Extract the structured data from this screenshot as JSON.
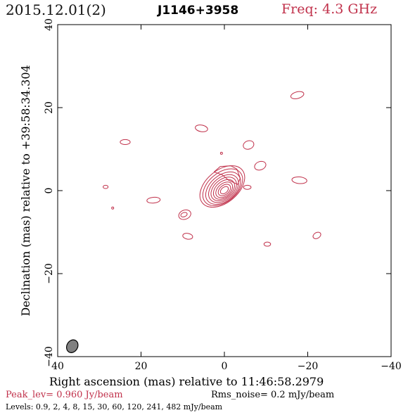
{
  "header": {
    "epoch": "2015.12.01(2)",
    "source": "J1146+3958",
    "frequency": "Freq: 4.3 GHz"
  },
  "footer": {
    "peak": "Peak_lev=  0.960 Jy/beam",
    "rms": "Rms_noise=  0.2 mJy/beam",
    "levels": "Levels: 0.9,   2,   4,   8,   15,   30,   60,  120,  241,  482 mJy/beam"
  },
  "colors": {
    "contour": "#c0304a",
    "accent_text": "#c0304a",
    "beam_fill": "#808080",
    "axis": "#000000"
  },
  "chart_data": {
    "type": "contour",
    "xlabel": "Right ascension (mas) relative to 11:46:58.2979",
    "ylabel": "Declination (mas) relative to +39:58:34.304",
    "xlim": [
      40,
      -40
    ],
    "ylim": [
      -40,
      40
    ],
    "x_ticks": [
      40,
      20,
      0,
      -20,
      -40
    ],
    "y_ticks": [
      -40,
      -20,
      0,
      20,
      40
    ],
    "x_tick_labels": [
      "40",
      "20",
      "0",
      "−20",
      "−40"
    ],
    "y_tick_labels": [
      "−40",
      "−20",
      "0",
      "20",
      "40"
    ],
    "levels_mJy_per_beam": [
      0.9,
      2,
      4,
      8,
      15,
      30,
      60,
      120,
      241,
      482
    ],
    "peak_Jy_per_beam": 0.96,
    "core": {
      "center": [
        0,
        0
      ],
      "contours": [
        {
          "center": [
            0.5,
            1.0
          ],
          "semi_major": 6.2,
          "semi_minor": 3.9,
          "angle_deg": 40
        },
        {
          "center": [
            0.4,
            0.8
          ],
          "semi_major": 5.5,
          "semi_minor": 3.5,
          "angle_deg": 40
        },
        {
          "center": [
            0.3,
            0.6
          ],
          "semi_major": 4.8,
          "semi_minor": 3.1,
          "angle_deg": 40
        },
        {
          "center": [
            0.2,
            0.5
          ],
          "semi_major": 4.1,
          "semi_minor": 2.7,
          "angle_deg": 40
        },
        {
          "center": [
            0.15,
            0.4
          ],
          "semi_major": 3.5,
          "semi_minor": 2.3,
          "angle_deg": 40
        },
        {
          "center": [
            0.1,
            0.3
          ],
          "semi_major": 2.9,
          "semi_minor": 1.9,
          "angle_deg": 40
        },
        {
          "center": [
            0.05,
            0.2
          ],
          "semi_major": 2.3,
          "semi_minor": 1.5,
          "angle_deg": 40
        },
        {
          "center": [
            0.0,
            0.15
          ],
          "semi_major": 1.7,
          "semi_minor": 1.1,
          "angle_deg": 40
        },
        {
          "center": [
            0.0,
            0.1
          ],
          "semi_major": 1.1,
          "semi_minor": 0.7,
          "angle_deg": 40
        }
      ],
      "extension": [
        [
          2.5,
          4.5
        ],
        [
          1.0,
          5.8
        ],
        [
          -1.5,
          6.0
        ],
        [
          -3.0,
          5.2
        ],
        [
          -3.8,
          3.0
        ],
        [
          -3.2,
          1.5
        ],
        [
          -1.0,
          2.5
        ],
        [
          0.5,
          3.8
        ],
        [
          2.5,
          4.5
        ]
      ]
    },
    "blobs": [
      {
        "center": [
          -17.5,
          23.0
        ],
        "semi_major": 1.6,
        "semi_minor": 0.8,
        "angle_deg": 15
      },
      {
        "center": [
          5.5,
          15.0
        ],
        "semi_major": 1.5,
        "semi_minor": 0.8,
        "angle_deg": -10
      },
      {
        "center": [
          23.8,
          11.7
        ],
        "semi_major": 1.2,
        "semi_minor": 0.6,
        "angle_deg": 0
      },
      {
        "center": [
          -5.8,
          11.0
        ],
        "semi_major": 1.3,
        "semi_minor": 1.0,
        "angle_deg": 20
      },
      {
        "center": [
          0.7,
          9.0
        ],
        "semi_major": 0.25,
        "semi_minor": 0.25,
        "angle_deg": 0
      },
      {
        "center": [
          -8.6,
          6.0
        ],
        "semi_major": 1.4,
        "semi_minor": 1.0,
        "angle_deg": 20
      },
      {
        "center": [
          -18.0,
          2.5
        ],
        "semi_major": 1.8,
        "semi_minor": 0.8,
        "angle_deg": -5
      },
      {
        "center": [
          -5.5,
          0.8
        ],
        "semi_major": 0.9,
        "semi_minor": 0.5,
        "angle_deg": 0
      },
      {
        "center": [
          28.5,
          0.9
        ],
        "semi_major": 0.6,
        "semi_minor": 0.4,
        "angle_deg": 0
      },
      {
        "center": [
          17.0,
          -2.3
        ],
        "semi_major": 1.6,
        "semi_minor": 0.7,
        "angle_deg": 5
      },
      {
        "center": [
          26.8,
          -4.2
        ],
        "semi_major": 0.25,
        "semi_minor": 0.25,
        "angle_deg": 0
      },
      {
        "center": [
          9.5,
          -5.8
        ],
        "semi_major": 1.5,
        "semi_minor": 1.1,
        "angle_deg": 20
      },
      {
        "center": [
          9.7,
          -5.8
        ],
        "semi_major": 0.8,
        "semi_minor": 0.5,
        "angle_deg": 20
      },
      {
        "center": [
          8.8,
          -11.0
        ],
        "semi_major": 1.2,
        "semi_minor": 0.7,
        "angle_deg": -10
      },
      {
        "center": [
          -22.2,
          -10.8
        ],
        "semi_major": 1.0,
        "semi_minor": 0.7,
        "angle_deg": 30
      },
      {
        "center": [
          -10.3,
          -12.9
        ],
        "semi_major": 0.8,
        "semi_minor": 0.5,
        "angle_deg": 0
      }
    ],
    "beam": {
      "center": [
        36.5,
        -37.5
      ],
      "semi_major": 1.6,
      "semi_minor": 1.3,
      "angle_deg": 60
    }
  }
}
